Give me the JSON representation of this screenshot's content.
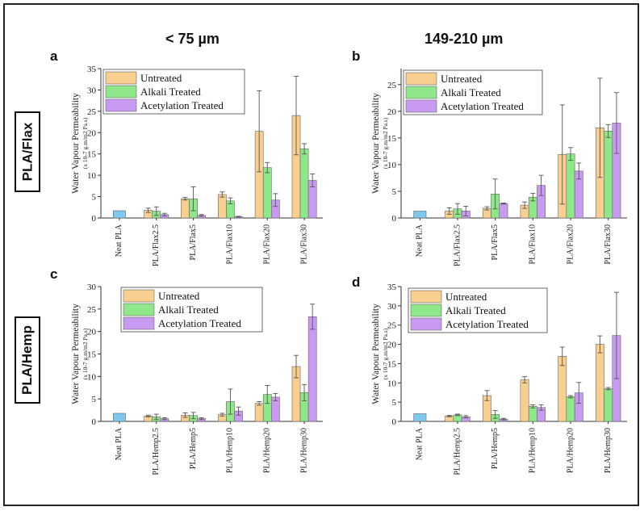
{
  "column_titles": [
    "< 75 µm",
    "149-210 µm"
  ],
  "row_labels": [
    "PLA/Flax",
    "PLA/Hemp"
  ],
  "colors": {
    "neat": "#7ec8ee",
    "untreated": "#f9cf8f",
    "alkali": "#8ee88a",
    "acetylation": "#c99af2",
    "edge": "#666666"
  },
  "chart_data": [
    {
      "panel": "a",
      "type": "bar",
      "ylabel": "Water Vapour Permeability",
      "ylabel_units": "(x 10-7 g.m/m2 Pa.s)",
      "ylim": [
        0,
        35
      ],
      "yticks": [
        0,
        5,
        10,
        15,
        20,
        25,
        30,
        35
      ],
      "legend": [
        "Untreated",
        "Alkali Treated",
        "Acetylation Treated"
      ],
      "neat": {
        "label": "Neat PLA",
        "value": 1.7,
        "error": 0
      },
      "categories": [
        "PLA/Flax2.5",
        "PLA/Flax5",
        "PLA/Flax10",
        "PLA/Flax20",
        "PLA/Flax30"
      ],
      "series": [
        {
          "name": "Untreated",
          "values": [
            1.8,
            4.5,
            5.5,
            20.3,
            24.0
          ],
          "errors": [
            0.5,
            0.3,
            0.6,
            9.5,
            9.2
          ]
        },
        {
          "name": "Alkali Treated",
          "values": [
            1.6,
            4.5,
            4.0,
            11.8,
            16.2
          ],
          "errors": [
            1.0,
            2.8,
            0.7,
            1.2,
            1.2
          ]
        },
        {
          "name": "Acetylation Treated",
          "values": [
            0.8,
            0.6,
            0.3,
            4.2,
            8.8
          ],
          "errors": [
            0.3,
            0.2,
            0.1,
            1.5,
            1.5
          ]
        }
      ]
    },
    {
      "panel": "b",
      "type": "bar",
      "ylabel": "Water Vapour Permeability",
      "ylabel_units": "(x 10-7 g.m/m2 Pa.s)",
      "ylim": [
        0,
        28
      ],
      "yticks": [
        0,
        5,
        10,
        15,
        20,
        25
      ],
      "legend": [
        "Untreated",
        "Alkali Treated",
        "Acetylation Treated"
      ],
      "neat": {
        "label": "Neat PLA",
        "value": 1.3,
        "error": 0
      },
      "categories": [
        "PLA/Flax2.5",
        "PLA/Flax5",
        "PLA/Flax10",
        "PLA/Flax20",
        "PLA/Flax30"
      ],
      "series": [
        {
          "name": "Untreated",
          "values": [
            1.3,
            1.8,
            2.4,
            11.9,
            16.9
          ],
          "errors": [
            0.6,
            0.3,
            0.6,
            9.3,
            9.3
          ]
        },
        {
          "name": "Alkali Treated",
          "values": [
            1.7,
            4.5,
            3.9,
            12.0,
            16.3
          ],
          "errors": [
            1.0,
            2.8,
            0.7,
            1.2,
            1.2
          ]
        },
        {
          "name": "Acetylation Treated",
          "values": [
            1.3,
            2.7,
            6.1,
            8.8,
            17.8
          ],
          "errors": [
            0.9,
            0.1,
            1.9,
            1.5,
            5.7
          ]
        }
      ]
    },
    {
      "panel": "c",
      "type": "bar",
      "ylabel": "Water Vapour Permeability",
      "ylabel_units": "(x 10-7 g.m/m2 Pa.s)",
      "ylim": [
        0,
        30
      ],
      "yticks": [
        0,
        5,
        10,
        15,
        20,
        25,
        30
      ],
      "legend": [
        "Untreated",
        "Alkali Treated",
        "Acetylation Treated"
      ],
      "neat": {
        "label": "Neat PLA",
        "value": 1.8,
        "error": 0
      },
      "categories": [
        "PLA/Hemp2.5",
        "PLA/Hemp5",
        "PLA/Hemp10",
        "PLA/Hemp20",
        "PLA/Hemp30"
      ],
      "series": [
        {
          "name": "Untreated",
          "values": [
            1.2,
            1.4,
            1.5,
            4.0,
            12.2
          ],
          "errors": [
            0.2,
            0.5,
            0.3,
            0.4,
            2.5
          ]
        },
        {
          "name": "Alkali Treated",
          "values": [
            1.0,
            1.3,
            4.4,
            6.0,
            6.4
          ],
          "errors": [
            0.6,
            0.7,
            2.8,
            2.0,
            1.8
          ]
        },
        {
          "name": "Acetylation Treated",
          "values": [
            0.6,
            0.6,
            2.3,
            5.4,
            23.3
          ],
          "errors": [
            0.2,
            0.2,
            0.9,
            0.8,
            2.8
          ]
        }
      ]
    },
    {
      "panel": "d",
      "type": "bar",
      "ylabel": "Water Vapour Permeability",
      "ylabel_units": "(x 10-7 g.m/m2 Pa.s)",
      "ylim": [
        0,
        35
      ],
      "yticks": [
        0,
        5,
        10,
        15,
        20,
        25,
        30,
        35
      ],
      "legend": [
        "Untreated",
        "Alkali Treated",
        "Acetylation Treated"
      ],
      "neat": {
        "label": "Neat PLA",
        "value": 2.0,
        "error": 0
      },
      "categories": [
        "PLA/Hemp2.5",
        "PLA/Hemp5",
        "PLA/Hemp10",
        "PLA/Hemp20",
        "PLA/Hemp30"
      ],
      "series": [
        {
          "name": "Untreated",
          "values": [
            1.4,
            6.7,
            10.8,
            16.9,
            20.0
          ],
          "errors": [
            0.2,
            1.3,
            0.8,
            2.4,
            2.2
          ]
        },
        {
          "name": "Alkali Treated",
          "values": [
            1.7,
            1.8,
            3.9,
            6.4,
            8.5
          ],
          "errors": [
            0.2,
            1.0,
            0.4,
            0.3,
            0.3
          ]
        },
        {
          "name": "Acetylation Treated",
          "values": [
            1.2,
            0.6,
            3.6,
            7.4,
            22.3
          ],
          "errors": [
            0.3,
            0.2,
            0.7,
            2.7,
            11.2
          ]
        }
      ]
    }
  ]
}
